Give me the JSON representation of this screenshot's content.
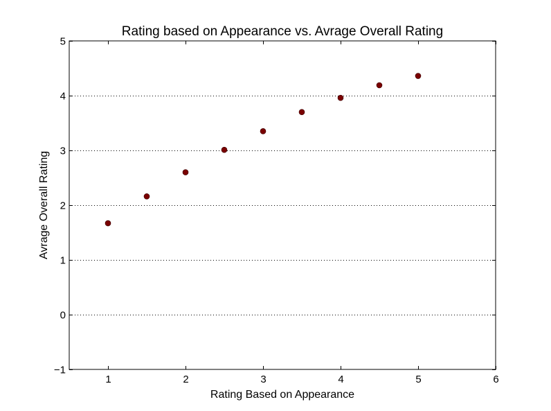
{
  "chart_data": {
    "type": "scatter",
    "title": "Rating based on Appearance vs. Avrage Overall Rating",
    "xlabel": "Rating Based on Appearance",
    "ylabel": "Avrage Overall Rating",
    "xlim": [
      0.5,
      6
    ],
    "ylim": [
      -1,
      5
    ],
    "x_ticks": [
      1,
      2,
      3,
      4,
      5,
      6
    ],
    "y_ticks": [
      -1,
      0,
      1,
      2,
      3,
      4,
      5
    ],
    "x_tick_labels": [
      "1",
      "2",
      "3",
      "4",
      "5",
      "6"
    ],
    "y_tick_labels": [
      "−1",
      "0",
      "1",
      "2",
      "3",
      "4",
      "5"
    ],
    "grid": "horizontal dotted",
    "marker_color": "#7a0000",
    "points": [
      {
        "x": 1.0,
        "y": 1.67
      },
      {
        "x": 1.5,
        "y": 2.16
      },
      {
        "x": 2.0,
        "y": 2.6
      },
      {
        "x": 2.5,
        "y": 3.01
      },
      {
        "x": 3.0,
        "y": 3.35
      },
      {
        "x": 3.5,
        "y": 3.7
      },
      {
        "x": 4.0,
        "y": 3.96
      },
      {
        "x": 4.5,
        "y": 4.19
      },
      {
        "x": 5.0,
        "y": 4.36
      }
    ]
  }
}
